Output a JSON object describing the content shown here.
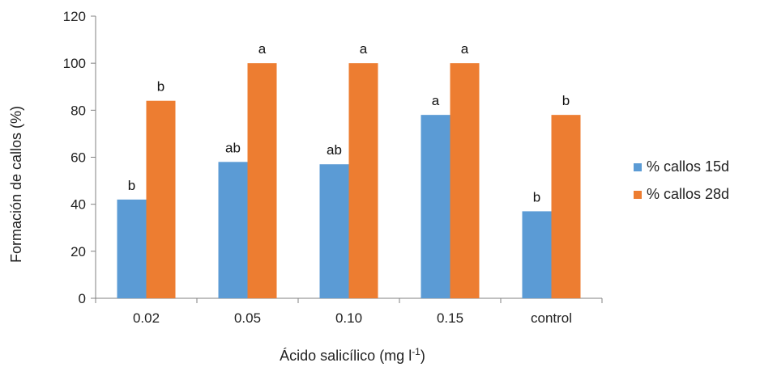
{
  "chart_data": {
    "type": "bar",
    "categories": [
      "0.02",
      "0.05",
      "0.10",
      "0.15",
      "control"
    ],
    "series": [
      {
        "name": "% callos 15d",
        "color": "#5B9BD5",
        "values": [
          42,
          58,
          57,
          78,
          37
        ],
        "labels": [
          "b",
          "ab",
          "ab",
          "a",
          "b"
        ]
      },
      {
        "name": "% callos 28d",
        "color": "#ED7D31",
        "values": [
          84,
          100,
          100,
          100,
          78
        ],
        "labels": [
          "b",
          "a",
          "a",
          "a",
          "b"
        ]
      }
    ],
    "xlabel": "Ácido salicílico  (mg l",
    "xlabel_superscript": "-1",
    "xlabel_suffix": ")",
    "ylabel": "Formación de callos (%)",
    "ylim": [
      0,
      120
    ],
    "yticks": [
      0,
      20,
      40,
      60,
      80,
      100,
      120
    ],
    "legend_position": "right",
    "grid": false
  }
}
